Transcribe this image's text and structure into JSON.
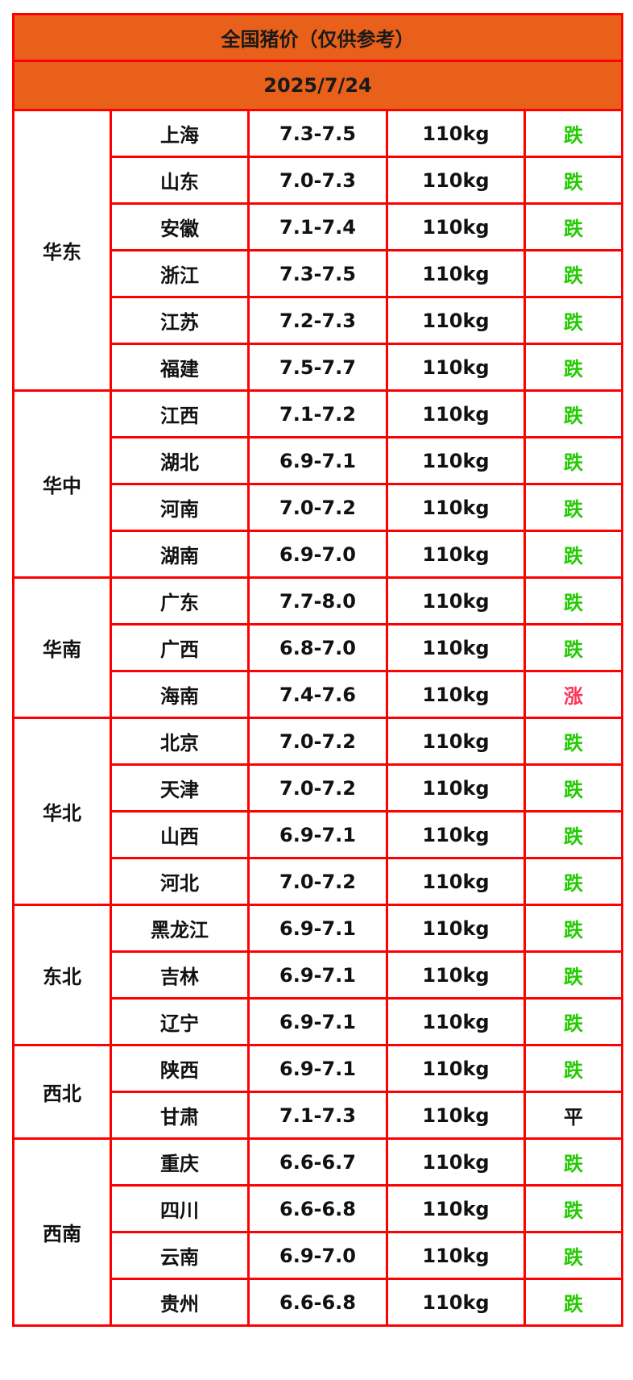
{
  "title": "全国猪价（仅供参考）",
  "date": "2025/7/24",
  "colors": {
    "header_bg": "#e8601a",
    "border": "#ff0000",
    "down": "#22cc00",
    "up": "#ff3355",
    "flat": "#111111"
  },
  "regions": [
    {
      "name": "华东",
      "rows": [
        [
          "上海",
          "7.3-7.5",
          "110kg",
          "跌"
        ],
        [
          "山东",
          "7.0-7.3",
          "110kg",
          "跌"
        ],
        [
          "安徽",
          "7.1-7.4",
          "110kg",
          "跌"
        ],
        [
          "浙江",
          "7.3-7.5",
          "110kg",
          "跌"
        ],
        [
          "江苏",
          "7.2-7.3",
          "110kg",
          "跌"
        ],
        [
          "福建",
          "7.5-7.7",
          "110kg",
          "跌"
        ]
      ]
    },
    {
      "name": "华中",
      "rows": [
        [
          "江西",
          "7.1-7.2",
          "110kg",
          "跌"
        ],
        [
          "湖北",
          "6.9-7.1",
          "110kg",
          "跌"
        ],
        [
          "河南",
          "7.0-7.2",
          "110kg",
          "跌"
        ],
        [
          "湖南",
          "6.9-7.0",
          "110kg",
          "跌"
        ]
      ]
    },
    {
      "name": "华南",
      "rows": [
        [
          "广东",
          "7.7-8.0",
          "110kg",
          "跌"
        ],
        [
          "广西",
          "6.8-7.0",
          "110kg",
          "跌"
        ],
        [
          "海南",
          "7.4-7.6",
          "110kg",
          "涨"
        ]
      ]
    },
    {
      "name": "华北",
      "rows": [
        [
          "北京",
          "7.0-7.2",
          "110kg",
          "跌"
        ],
        [
          "天津",
          "7.0-7.2",
          "110kg",
          "跌"
        ],
        [
          "山西",
          "6.9-7.1",
          "110kg",
          "跌"
        ],
        [
          "河北",
          "7.0-7.2",
          "110kg",
          "跌"
        ]
      ]
    },
    {
      "name": "东北",
      "rows": [
        [
          "黑龙江",
          "6.9-7.1",
          "110kg",
          "跌"
        ],
        [
          "吉林",
          "6.9-7.1",
          "110kg",
          "跌"
        ],
        [
          "辽宁",
          "6.9-7.1",
          "110kg",
          "跌"
        ]
      ]
    },
    {
      "name": "西北",
      "rows": [
        [
          "陕西",
          "6.9-7.1",
          "110kg",
          "跌"
        ],
        [
          "甘肃",
          "7.1-7.3",
          "110kg",
          "平"
        ]
      ]
    },
    {
      "name": "西南",
      "rows": [
        [
          "重庆",
          "6.6-6.7",
          "110kg",
          "跌"
        ],
        [
          "四川",
          "6.6-6.8",
          "110kg",
          "跌"
        ],
        [
          "云南",
          "6.9-7.0",
          "110kg",
          "跌"
        ],
        [
          "贵州",
          "6.6-6.8",
          "110kg",
          "跌"
        ]
      ]
    }
  ]
}
